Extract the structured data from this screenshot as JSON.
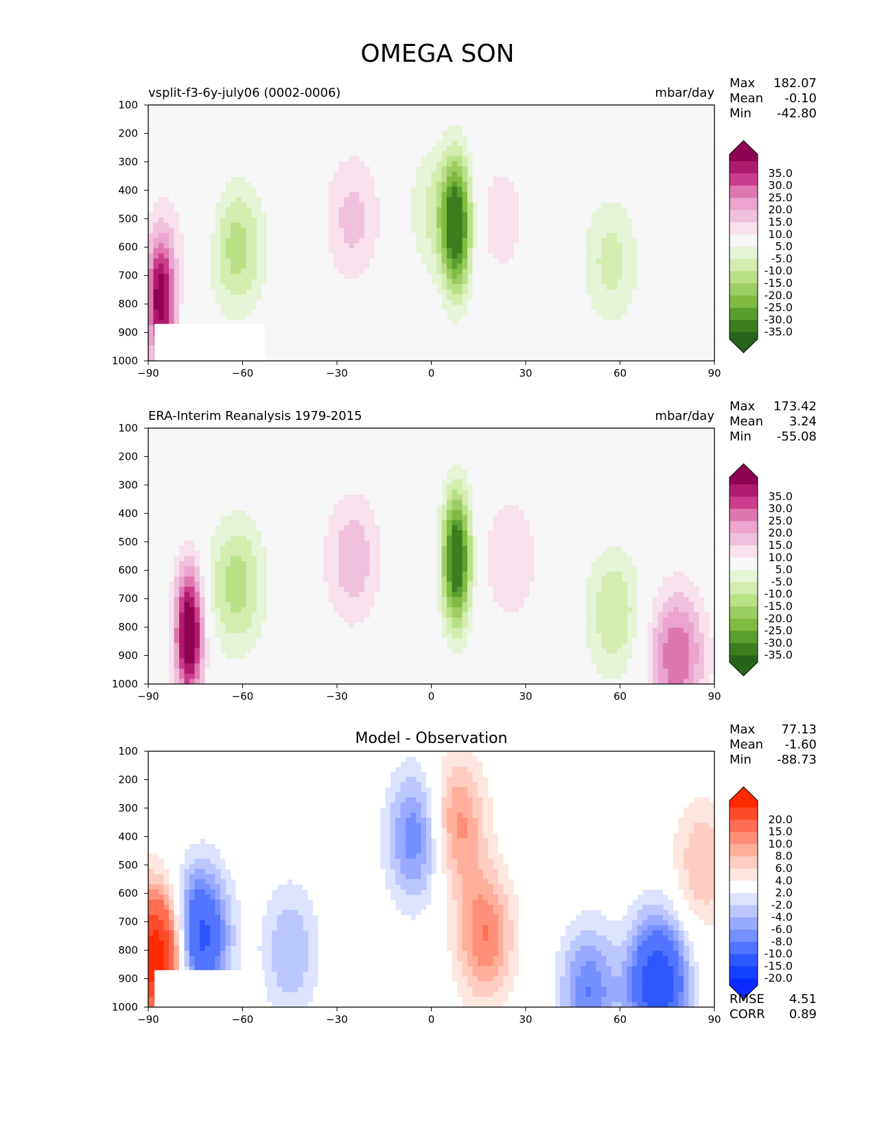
{
  "title": "OMEGA SON",
  "chart_data": [
    {
      "type": "heatmap",
      "panel": "model",
      "title": "vsplit-f3-6y-july06 (0002-0006)",
      "units": "mbar/day",
      "stats": [
        {
          "label": "Max",
          "value": "182.07"
        },
        {
          "label": "Mean",
          "value": "-0.10"
        },
        {
          "label": "Min",
          "value": "-42.80"
        }
      ],
      "xlim": [
        -90,
        90
      ],
      "ylim": [
        1000,
        100
      ],
      "xticks": [
        "−90",
        "−60",
        "−30",
        "0",
        "30",
        "60",
        "90"
      ],
      "yticks": [
        "100",
        "200",
        "300",
        "400",
        "500",
        "600",
        "700",
        "800",
        "900",
        "1000"
      ],
      "colorbar": {
        "levels": [
          "35.0",
          "30.0",
          "25.0",
          "20.0",
          "15.0",
          "10.0",
          "5.0",
          "-5.0",
          "-10.0",
          "-15.0",
          "-20.0",
          "-25.0",
          "-30.0",
          "-35.0"
        ],
        "colors": [
          "#8e0152",
          "#b01a6e",
          "#cc3d8e",
          "#de77ae",
          "#eaa4cd",
          "#f1c0dd",
          "#f7e1ec",
          "#f7f7f7",
          "#e6f4d6",
          "#d4ecb0",
          "#b8e186",
          "#9ccd64",
          "#7fbc41",
          "#5a9e2e",
          "#3d7d1f",
          "#276419"
        ]
      },
      "features": [
        {
          "kind": "blob",
          "lat": 8,
          "p": 530,
          "value": -40
        },
        {
          "kind": "blob",
          "lat": 2,
          "p": 470,
          "value": -12
        },
        {
          "kind": "blob",
          "lat": -62,
          "p": 600,
          "value": -18
        },
        {
          "kind": "blob",
          "lat": 57,
          "p": 650,
          "value": -12
        },
        {
          "kind": "blob",
          "lat": -25,
          "p": 500,
          "value": 12
        },
        {
          "kind": "blob",
          "lat": 22,
          "p": 500,
          "value": 8
        },
        {
          "kind": "blob",
          "lat": -75,
          "p": 500,
          "value": 5
        },
        {
          "kind": "blob",
          "lat": -86,
          "p": 780,
          "value": 40
        }
      ]
    },
    {
      "type": "heatmap",
      "panel": "observation",
      "title": "ERA-Interim Reanalysis 1979-2015",
      "units": "mbar/day",
      "stats": [
        {
          "label": "Max",
          "value": "173.42"
        },
        {
          "label": "Mean",
          "value": "3.24"
        },
        {
          "label": "Min",
          "value": "-55.08"
        }
      ],
      "xlim": [
        -90,
        90
      ],
      "ylim": [
        1000,
        100
      ],
      "xticks": [
        "−90",
        "−60",
        "−30",
        "0",
        "30",
        "60",
        "90"
      ],
      "yticks": [
        "100",
        "200",
        "300",
        "400",
        "500",
        "600",
        "700",
        "800",
        "900",
        "1000"
      ],
      "colorbar": {
        "levels": [
          "35.0",
          "30.0",
          "25.0",
          "20.0",
          "15.0",
          "10.0",
          "5.0",
          "-5.0",
          "-10.0",
          "-15.0",
          "-20.0",
          "-25.0",
          "-30.0",
          "-35.0"
        ],
        "colors": [
          "#8e0152",
          "#b01a6e",
          "#cc3d8e",
          "#de77ae",
          "#eaa4cd",
          "#f1c0dd",
          "#f7e1ec",
          "#f7f7f7",
          "#e6f4d6",
          "#d4ecb0",
          "#b8e186",
          "#9ccd64",
          "#7fbc41",
          "#5a9e2e",
          "#3d7d1f",
          "#276419"
        ]
      },
      "features": [
        {
          "kind": "blob",
          "lat": 8,
          "p": 560,
          "value": -45
        },
        {
          "kind": "blob",
          "lat": -62,
          "p": 650,
          "value": -18
        },
        {
          "kind": "blob",
          "lat": 58,
          "p": 750,
          "value": -15
        },
        {
          "kind": "blob",
          "lat": -25,
          "p": 560,
          "value": 14
        },
        {
          "kind": "blob",
          "lat": 25,
          "p": 560,
          "value": 10
        },
        {
          "kind": "blob",
          "lat": -77,
          "p": 820,
          "value": 45
        },
        {
          "kind": "blob",
          "lat": 78,
          "p": 900,
          "value": 25
        }
      ]
    },
    {
      "type": "heatmap",
      "panel": "difference",
      "title": "Model - Observation",
      "stats": [
        {
          "label": "Max",
          "value": "77.13"
        },
        {
          "label": "Mean",
          "value": "-1.60"
        },
        {
          "label": "Min",
          "value": "-88.73"
        }
      ],
      "metrics": [
        {
          "label": "RMSE",
          "value": "4.51"
        },
        {
          "label": "CORR",
          "value": "0.89"
        }
      ],
      "xlim": [
        -90,
        90
      ],
      "ylim": [
        1000,
        100
      ],
      "xticks": [
        "−90",
        "−60",
        "−30",
        "0",
        "30",
        "60",
        "90"
      ],
      "yticks": [
        "100",
        "200",
        "300",
        "400",
        "500",
        "600",
        "700",
        "800",
        "900",
        "1000"
      ],
      "colorbar": {
        "levels": [
          "20.0",
          "15.0",
          "10.0",
          "8.0",
          "6.0",
          "4.0",
          "2.0",
          "-2.0",
          "-4.0",
          "-6.0",
          "-8.0",
          "-10.0",
          "-15.0",
          "-20.0"
        ],
        "colors": [
          "#ff2a00",
          "#ff4a2a",
          "#ff6d52",
          "#ff8f79",
          "#ffaf9c",
          "#ffcdbf",
          "#ffe6de",
          "#ffffff",
          "#dde3ff",
          "#bac8ff",
          "#98aaff",
          "#7590ff",
          "#5274ff",
          "#2f57ff",
          "#1440ff",
          "#0a2bff"
        ]
      },
      "features": [
        {
          "kind": "blob",
          "lat": -5,
          "p": 400,
          "value": -10
        },
        {
          "kind": "blob",
          "lat": -45,
          "p": 800,
          "value": -6
        },
        {
          "kind": "blob",
          "lat": -74,
          "p": 750,
          "value": -18
        },
        {
          "kind": "blob",
          "lat": 72,
          "p": 920,
          "value": -20
        },
        {
          "kind": "blob",
          "lat": 50,
          "p": 950,
          "value": -10
        },
        {
          "kind": "blob",
          "lat": 8,
          "p": 350,
          "value": 9
        },
        {
          "kind": "blob",
          "lat": 17,
          "p": 750,
          "value": 10
        },
        {
          "kind": "blob",
          "lat": 86,
          "p": 500,
          "value": 6
        },
        {
          "kind": "blob",
          "lat": -87,
          "p": 820,
          "value": 25
        }
      ]
    }
  ]
}
